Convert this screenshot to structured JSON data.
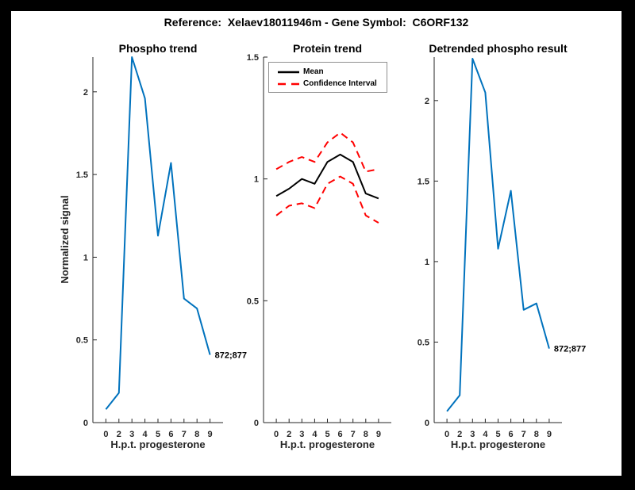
{
  "figure": {
    "title": "Reference:  Xelaev18011946m - Gene Symbol:  C6ORF132"
  },
  "colors": {
    "blue": "#0072BD",
    "red": "#FF0000",
    "black": "#000000",
    "axis": "#262626",
    "background": "#FFFFFF",
    "frame": "#000000"
  },
  "chart_data": [
    {
      "type": "line",
      "title": "Phospho trend",
      "xlabel": "H.p.t. progesterone",
      "ylabel": "Normalized signal",
      "x_tick_labels": [
        "0",
        "2",
        "3",
        "4",
        "5",
        "6",
        "7",
        "8",
        "9"
      ],
      "yticks": [
        0,
        0.5,
        1,
        1.5,
        2
      ],
      "ylim": [
        0,
        2.21
      ],
      "grid": false,
      "series": [
        {
          "name": "phospho-signal",
          "color": "#0072BD",
          "style": "solid",
          "width": 2,
          "values": [
            0.08,
            0.18,
            2.21,
            1.96,
            1.13,
            1.57,
            0.75,
            0.69,
            0.41
          ]
        }
      ],
      "annotation": {
        "text": "872;877",
        "at_index": 8
      }
    },
    {
      "type": "line",
      "title": "Protein trend",
      "xlabel": "H.p.t. progesterone",
      "ylabel": "",
      "x_tick_labels": [
        "0",
        "2",
        "3",
        "4",
        "5",
        "6",
        "7",
        "8",
        "9"
      ],
      "yticks": [
        0,
        0.5,
        1,
        1.5
      ],
      "ylim": [
        0,
        1.5
      ],
      "grid": false,
      "series": [
        {
          "name": "mean",
          "color": "#000000",
          "style": "solid",
          "width": 2,
          "values": [
            0.93,
            0.96,
            1.0,
            0.98,
            1.07,
            1.1,
            1.07,
            0.94,
            0.92
          ]
        },
        {
          "name": "confidence-upper",
          "color": "#FF0000",
          "style": "dashed",
          "width": 2,
          "values": [
            1.04,
            1.07,
            1.09,
            1.07,
            1.15,
            1.19,
            1.15,
            1.03,
            1.04
          ]
        },
        {
          "name": "confidence-lower",
          "color": "#FF0000",
          "style": "dashed",
          "width": 2,
          "values": [
            0.85,
            0.89,
            0.9,
            0.88,
            0.98,
            1.01,
            0.98,
            0.85,
            0.82
          ]
        }
      ],
      "legend": {
        "position": "northwest",
        "entries": [
          {
            "label": "Mean",
            "color": "#000000",
            "style": "solid"
          },
          {
            "label": "Confidence Interval",
            "color": "#FF0000",
            "style": "dashed"
          }
        ]
      }
    },
    {
      "type": "line",
      "title": "Detrended phospho result",
      "xlabel": "H.p.t. progesterone",
      "ylabel": "",
      "x_tick_labels": [
        "0",
        "2",
        "3",
        "4",
        "5",
        "6",
        "7",
        "8",
        "9"
      ],
      "yticks": [
        0,
        0.5,
        1,
        1.5,
        2
      ],
      "ylim": [
        0,
        2.27
      ],
      "grid": false,
      "series": [
        {
          "name": "detrended-phospho-signal",
          "color": "#0072BD",
          "style": "solid",
          "width": 2,
          "values": [
            0.07,
            0.17,
            2.26,
            2.05,
            1.08,
            1.44,
            0.7,
            0.74,
            0.46
          ]
        }
      ],
      "annotation": {
        "text": "872;877",
        "at_index": 8
      }
    }
  ]
}
